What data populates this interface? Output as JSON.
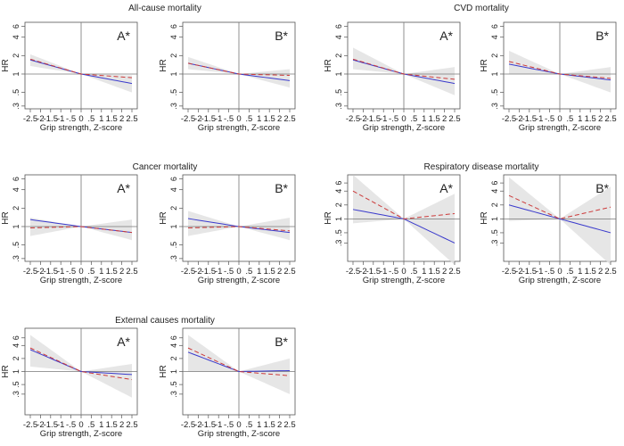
{
  "chart_data": [
    {
      "group": "All-cause mortality",
      "label": "A*",
      "type": "line",
      "xlabel": "Grip strength, Z-score",
      "ylabel": "HR",
      "yscale": "log",
      "ylim": [
        0.27,
        7
      ],
      "x": [
        -2.5,
        0,
        2.5
      ],
      "series": [
        {
          "style": "solid",
          "color": "#3a3acc",
          "values": [
            1.7,
            1,
            0.7
          ]
        },
        {
          "style": "dashed",
          "color": "#cc3a3a",
          "values": [
            1.75,
            1,
            0.87
          ]
        }
      ],
      "ci_lower": [
        1.35,
        1,
        0.5
      ],
      "ci_upper": [
        2.1,
        1,
        0.95
      ]
    },
    {
      "group": "All-cause mortality",
      "label": "B*",
      "type": "line",
      "xlabel": "Grip strength, Z-score",
      "ylabel": "HR",
      "yscale": "log",
      "ylim": [
        0.27,
        7
      ],
      "x": [
        -2.5,
        0,
        2.5
      ],
      "series": [
        {
          "style": "solid",
          "color": "#3a3acc",
          "values": [
            1.5,
            1,
            0.78
          ]
        },
        {
          "style": "dashed",
          "color": "#cc3a3a",
          "values": [
            1.5,
            1,
            0.95
          ]
        }
      ],
      "ci_lower": [
        1.2,
        1,
        0.6
      ],
      "ci_upper": [
        1.9,
        1,
        1.2
      ]
    },
    {
      "group": "CVD mortality",
      "label": "A*",
      "type": "line",
      "xlabel": "Grip strength, Z-score",
      "ylabel": "HR",
      "yscale": "log",
      "ylim": [
        0.27,
        7
      ],
      "x": [
        -2.5,
        0,
        2.5
      ],
      "series": [
        {
          "style": "solid",
          "color": "#3a3acc",
          "values": [
            1.7,
            1,
            0.7
          ]
        },
        {
          "style": "dashed",
          "color": "#cc3a3a",
          "values": [
            1.75,
            1,
            0.82
          ]
        }
      ],
      "ci_lower": [
        1.2,
        1,
        0.45
      ],
      "ci_upper": [
        2.7,
        1,
        1.3
      ]
    },
    {
      "group": "CVD mortality",
      "label": "B*",
      "type": "line",
      "xlabel": "Grip strength, Z-score",
      "ylabel": "HR",
      "yscale": "log",
      "ylim": [
        0.27,
        7
      ],
      "x": [
        -2.5,
        0,
        2.5
      ],
      "series": [
        {
          "style": "solid",
          "color": "#3a3acc",
          "values": [
            1.45,
            1,
            0.8
          ]
        },
        {
          "style": "dashed",
          "color": "#cc3a3a",
          "values": [
            1.6,
            1,
            0.85
          ]
        }
      ],
      "ci_lower": [
        1.0,
        1,
        0.5
      ],
      "ci_upper": [
        2.4,
        1,
        1.3
      ]
    },
    {
      "group": "Cancer mortality",
      "label": "A*",
      "type": "line",
      "xlabel": "Grip strength, Z-score",
      "ylabel": "HR",
      "yscale": "log",
      "ylim": [
        0.27,
        7
      ],
      "x": [
        -2.5,
        0,
        2.5
      ],
      "series": [
        {
          "style": "solid",
          "color": "#3a3acc",
          "values": [
            1.3,
            1,
            0.8
          ]
        },
        {
          "style": "dashed",
          "color": "#cc3a3a",
          "values": [
            0.95,
            1,
            0.8
          ]
        }
      ],
      "ci_lower": [
        0.7,
        1,
        0.6
      ],
      "ci_upper": [
        1.4,
        1,
        1.3
      ]
    },
    {
      "group": "Cancer mortality",
      "label": "B*",
      "type": "line",
      "xlabel": "Grip strength, Z-score",
      "ylabel": "HR",
      "yscale": "log",
      "ylim": [
        0.27,
        7
      ],
      "x": [
        -2.5,
        0,
        2.5
      ],
      "series": [
        {
          "style": "solid",
          "color": "#3a3acc",
          "values": [
            1.35,
            1,
            0.8
          ]
        },
        {
          "style": "dashed",
          "color": "#cc3a3a",
          "values": [
            0.95,
            1,
            0.85
          ]
        }
      ],
      "ci_lower": [
        0.7,
        1,
        0.6
      ],
      "ci_upper": [
        1.8,
        1,
        1.4
      ]
    },
    {
      "group": "Respiratory disease mortality",
      "label": "A*",
      "type": "line",
      "xlabel": "Grip strength, Z-score",
      "ylabel": "HR",
      "yscale": "log",
      "ylim": [
        0.12,
        9
      ],
      "x": [
        -2.5,
        0,
        2.5
      ],
      "series": [
        {
          "style": "solid",
          "color": "#3a3acc",
          "values": [
            1.6,
            1,
            0.3
          ]
        },
        {
          "style": "dashed",
          "color": "#cc3a3a",
          "values": [
            4,
            1,
            1.3
          ]
        }
      ],
      "ci_lower": [
        0.8,
        1,
        0.1
      ],
      "ci_upper": [
        9,
        1,
        3.5
      ]
    },
    {
      "group": "Respiratory disease mortality",
      "label": "B*",
      "type": "line",
      "xlabel": "Grip strength, Z-score",
      "ylabel": "HR",
      "yscale": "log",
      "ylim": [
        0.12,
        9
      ],
      "x": [
        -2.5,
        0,
        2.5
      ],
      "series": [
        {
          "style": "solid",
          "color": "#3a3acc",
          "values": [
            2,
            1,
            0.5
          ]
        },
        {
          "style": "dashed",
          "color": "#cc3a3a",
          "values": [
            3.2,
            1,
            1.8
          ]
        }
      ],
      "ci_lower": [
        0.9,
        1,
        0.1
      ],
      "ci_upper": [
        8,
        1,
        5
      ]
    },
    {
      "group": "External causes mortality",
      "label": "A*",
      "type": "line",
      "xlabel": "Grip strength, Z-score",
      "ylabel": "HR",
      "yscale": "log",
      "ylim": [
        0.1,
        10
      ],
      "x": [
        -2.5,
        0,
        2.5
      ],
      "series": [
        {
          "style": "solid",
          "color": "#3a3acc",
          "values": [
            3.2,
            1,
            0.85
          ]
        },
        {
          "style": "dashed",
          "color": "#cc3a3a",
          "values": [
            3.5,
            1,
            0.65
          ]
        }
      ],
      "ci_lower": [
        1.3,
        1,
        0.25
      ],
      "ci_upper": [
        7,
        1,
        1.5
      ]
    },
    {
      "group": "External causes mortality",
      "label": "B*",
      "type": "line",
      "xlabel": "Grip strength, Z-score",
      "ylabel": "HR",
      "yscale": "log",
      "ylim": [
        0.1,
        10
      ],
      "x": [
        -2.5,
        0,
        2.5
      ],
      "series": [
        {
          "style": "solid",
          "color": "#3a3acc",
          "values": [
            2.8,
            1,
            1.05
          ]
        },
        {
          "style": "dashed",
          "color": "#cc3a3a",
          "values": [
            3.5,
            1,
            0.8
          ]
        }
      ],
      "ci_lower": [
        1,
        1,
        0.3
      ],
      "ci_upper": [
        7,
        1,
        2
      ]
    }
  ],
  "titles": [
    "All-cause mortality",
    "CVD mortality",
    "Cancer mortality",
    "Respiratory disease mortality",
    "External causes mortality"
  ],
  "xticks": [
    "-2.5",
    "-2",
    "-1.5",
    "-1",
    "-.5",
    "0",
    ".5",
    "1",
    "1.5",
    "2",
    "2.5"
  ],
  "yticks": [
    {
      "v": 0.3,
      "t": ".3"
    },
    {
      "v": 0.5,
      "t": ".5"
    },
    {
      "v": 1,
      "t": "1"
    },
    {
      "v": 2,
      "t": "2"
    },
    {
      "v": 4,
      "t": "4"
    },
    {
      "v": 6,
      "t": "6"
    }
  ],
  "colors": {
    "band": "#e2e2e2",
    "band_inner": "#dcdcf0"
  }
}
